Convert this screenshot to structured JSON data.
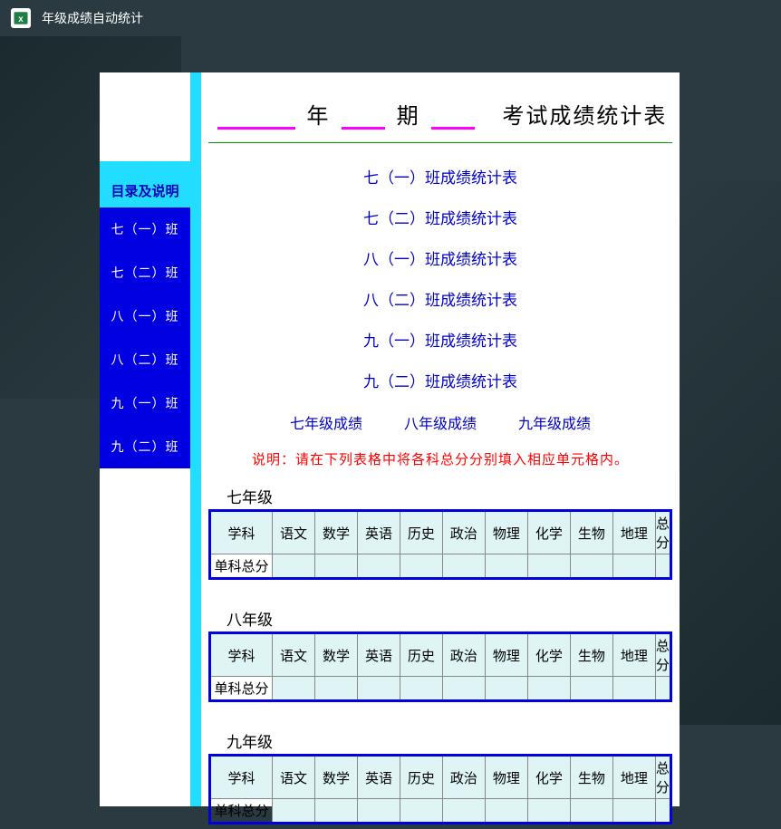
{
  "titlebar": {
    "app_title": "年级成绩自动统计",
    "icon_fill": "#1e7e45",
    "icon_letter": "x"
  },
  "doc_title": {
    "label_year": "年",
    "label_term": "期",
    "label_main": "考试成绩统计表"
  },
  "sidebar": {
    "header": "目录及说明",
    "items": [
      "七（一）班",
      "七（二）班",
      "八（一）班",
      "八（二）班",
      "九（一）班",
      "九（二）班"
    ]
  },
  "sheet_links": [
    "七（一）班成绩统计表",
    "七（二）班成绩统计表",
    "八（一）班成绩统计表",
    "八（二）班成绩统计表",
    "九（一）班成绩统计表",
    "九（二）班成绩统计表"
  ],
  "grade_links": [
    "七年级成绩",
    "八年级成绩",
    "九年级成绩"
  ],
  "note": "说明：请在下列表格中将各科总分分别填入相应单元格内。",
  "subject_tables": {
    "grades": [
      "七年级",
      "八年级",
      "九年级"
    ],
    "header_row": [
      "学科",
      "语文",
      "数学",
      "英语",
      "历史",
      "政治",
      "物理",
      "化学",
      "生物",
      "地理",
      "总分"
    ],
    "row_label": "单科总分",
    "values": {
      "七年级": [
        "",
        "",
        "",
        "",
        "",
        "",
        "",
        "",
        "",
        ""
      ],
      "八年级": [
        "",
        "",
        "",
        "",
        "",
        "",
        "",
        "",
        "",
        ""
      ],
      "九年级": [
        "",
        "",
        "",
        "",
        "",
        "",
        "",
        "",
        "",
        ""
      ]
    },
    "border_color": "#0000e0",
    "cell_bg": "#dff5f5"
  },
  "colors": {
    "bg": "#2a3a40",
    "cyan": "#2df",
    "sidebar_bg": "#0000e0",
    "sidebar_text": "#ffffff",
    "link": "#0000cc",
    "note": "#ff0000",
    "underline": "#ff00ff",
    "hr": "#009900"
  }
}
